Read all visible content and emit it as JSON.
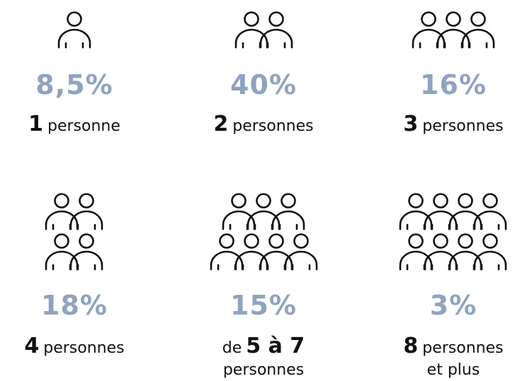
{
  "items": [
    {
      "percent": "8,5%",
      "lines": [
        [
          {
            "text": "1",
            "bold": true
          },
          {
            "text": "personne"
          }
        ]
      ]
    },
    {
      "percent": "40%",
      "lines": [
        [
          {
            "text": "2",
            "bold": true
          },
          {
            "text": "personnes"
          }
        ]
      ]
    },
    {
      "percent": "16%",
      "lines": [
        [
          {
            "text": "3",
            "bold": true
          },
          {
            "text": "personnes"
          }
        ]
      ]
    },
    {
      "percent": "18%",
      "lines": [
        [
          {
            "text": "4",
            "bold": true
          },
          {
            "text": "personnes"
          }
        ]
      ]
    },
    {
      "percent": "15%",
      "lines": [
        [
          {
            "text": "de"
          },
          {
            "text": "5 à 7",
            "bold": true
          }
        ],
        [
          {
            "text": "personnes"
          }
        ]
      ]
    },
    {
      "percent": "3%",
      "lines": [
        [
          {
            "text": "8",
            "bold": true
          },
          {
            "text": "personnes"
          }
        ],
        [
          {
            "text": "et plus"
          }
        ]
      ]
    }
  ]
}
